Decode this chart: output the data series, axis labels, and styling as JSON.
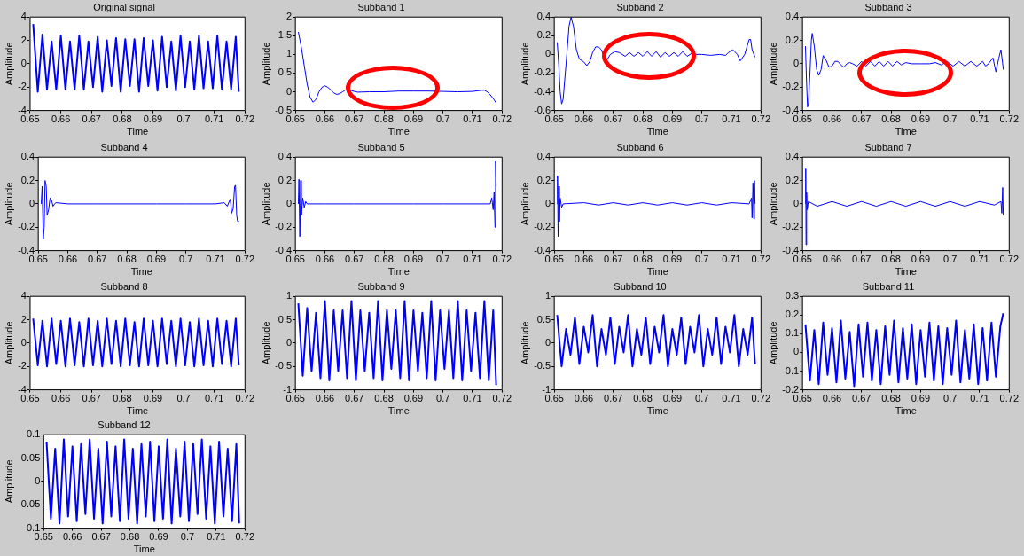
{
  "chart_data": [
    {
      "type": "line",
      "title": "Original signal",
      "xlabel": "Time",
      "ylabel": "Amplitude",
      "color": "#0000ff",
      "xlim": [
        0.65,
        0.72
      ],
      "xticks": [
        0.65,
        0.66,
        0.67,
        0.68,
        0.69,
        0.7,
        0.71,
        0.72
      ],
      "ylim": [
        -4,
        4
      ],
      "yticks": [
        -4,
        -2,
        0,
        2,
        4
      ],
      "x": [
        0.651,
        0.6525,
        0.654,
        0.6555,
        0.657,
        0.6585,
        0.66,
        0.6615,
        0.663,
        0.6645,
        0.666,
        0.6675,
        0.669,
        0.6705,
        0.672,
        0.6735,
        0.675,
        0.6765,
        0.678,
        0.6795,
        0.681,
        0.6825,
        0.684,
        0.6855,
        0.687,
        0.6885,
        0.69,
        0.6915,
        0.693,
        0.6945,
        0.696,
        0.6975,
        0.699,
        0.7005,
        0.702,
        0.7035,
        0.705,
        0.7065,
        0.708,
        0.7095,
        0.711,
        0.7125,
        0.714,
        0.7155,
        0.717,
        0.718
      ],
      "values": [
        3.4,
        -2.4,
        2.5,
        -2.2,
        1.9,
        -2.2,
        2.4,
        -2.2,
        1.9,
        -2.2,
        2.4,
        -2.2,
        1.9,
        -2.0,
        2.3,
        -2.4,
        2.0,
        -1.9,
        2.2,
        -2.4,
        2.1,
        -1.9,
        2.1,
        -2.4,
        2.2,
        -1.9,
        2.0,
        -2.3,
        2.3,
        -2.0,
        1.9,
        -2.3,
        2.4,
        -2.0,
        1.9,
        -2.2,
        2.4,
        -2.1,
        1.9,
        -2.1,
        2.4,
        -2.2,
        1.9,
        -2.2,
        2.3,
        -2.4
      ]
    },
    {
      "type": "line",
      "title": "Subband 1",
      "xlabel": "Time",
      "ylabel": "Amplitude",
      "color": "#0000ff",
      "xlim": [
        0.65,
        0.72
      ],
      "xticks": [
        0.65,
        0.66,
        0.67,
        0.68,
        0.69,
        0.7,
        0.71,
        0.72
      ],
      "ylim": [
        -0.5,
        2
      ],
      "yticks": [
        -0.5,
        0,
        0.5,
        1,
        1.5,
        2
      ],
      "x": [
        0.651,
        0.652,
        0.653,
        0.654,
        0.655,
        0.656,
        0.657,
        0.658,
        0.659,
        0.66,
        0.661,
        0.662,
        0.663,
        0.664,
        0.665,
        0.666,
        0.667,
        0.668,
        0.669,
        0.671,
        0.675,
        0.68,
        0.685,
        0.69,
        0.695,
        0.7,
        0.705,
        0.71,
        0.713,
        0.714,
        0.715,
        0.716,
        0.717,
        0.718
      ],
      "values": [
        1.6,
        1.2,
        0.7,
        0.2,
        -0.15,
        -0.28,
        -0.2,
        0,
        0.12,
        0.16,
        0.12,
        0.05,
        -0.03,
        -0.07,
        -0.05,
        0,
        0.05,
        0.06,
        0.03,
        -0.01,
        0,
        0,
        0.02,
        0.02,
        0.02,
        0.01,
        0,
        0.01,
        0.04,
        0.04,
        0,
        -0.08,
        -0.18,
        -0.3
      ]
    },
    {
      "type": "line",
      "title": "Subband 2",
      "xlabel": "Time",
      "ylabel": "Amplitude",
      "color": "#0000ff",
      "xlim": [
        0.65,
        0.72
      ],
      "xticks": [
        0.65,
        0.66,
        0.67,
        0.68,
        0.69,
        0.7,
        0.71,
        0.72
      ],
      "ylim": [
        -0.6,
        0.4
      ],
      "yticks": [
        -0.6,
        -0.4,
        -0.2,
        0,
        0.2,
        0.4
      ],
      "x": [
        0.651,
        0.6515,
        0.652,
        0.6525,
        0.653,
        0.654,
        0.655,
        0.6557,
        0.6565,
        0.6575,
        0.6585,
        0.66,
        0.661,
        0.662,
        0.663,
        0.664,
        0.665,
        0.666,
        0.667,
        0.668,
        0.669,
        0.6705,
        0.672,
        0.674,
        0.6755,
        0.677,
        0.6785,
        0.68,
        0.6815,
        0.683,
        0.6845,
        0.686,
        0.6875,
        0.689,
        0.6905,
        0.692,
        0.6935,
        0.695,
        0.6965,
        0.698,
        0.7,
        0.703,
        0.706,
        0.708,
        0.709,
        0.7105,
        0.712,
        0.713,
        0.7145,
        0.716,
        0.7165,
        0.717,
        0.718
      ],
      "values": [
        0.13,
        -0.1,
        -0.4,
        -0.53,
        -0.48,
        -0.1,
        0.3,
        0.4,
        0.3,
        0.05,
        -0.05,
        -0.08,
        -0.12,
        -0.08,
        0.02,
        0.08,
        0.08,
        0.05,
        -0.04,
        -0.05,
        0,
        0.03,
        0.02,
        -0.02,
        0.02,
        -0.02,
        0.02,
        -0.02,
        0.03,
        -0.02,
        0.03,
        -0.03,
        0.02,
        -0.02,
        0.02,
        -0.02,
        0.03,
        -0.02,
        0.01,
        0,
        0,
        -0.01,
        0,
        -0.01,
        0.02,
        0.05,
        0,
        -0.07,
        0,
        0.16,
        0.16,
        0.05,
        -0.03
      ]
    },
    {
      "type": "line",
      "title": "Subband 3",
      "xlabel": "Time",
      "ylabel": "Amplitude",
      "color": "#0000ff",
      "xlim": [
        0.65,
        0.72
      ],
      "xticks": [
        0.65,
        0.66,
        0.67,
        0.68,
        0.69,
        0.7,
        0.71,
        0.72
      ],
      "ylim": [
        -0.4,
        0.4
      ],
      "yticks": [
        -0.4,
        -0.2,
        0,
        0.2,
        0.4
      ],
      "x": [
        0.651,
        0.6513,
        0.6517,
        0.652,
        0.6525,
        0.653,
        0.6533,
        0.654,
        0.6548,
        0.6555,
        0.6563,
        0.657,
        0.658,
        0.659,
        0.66,
        0.661,
        0.662,
        0.663,
        0.664,
        0.665,
        0.666,
        0.667,
        0.6685,
        0.67,
        0.6715,
        0.673,
        0.6745,
        0.676,
        0.6775,
        0.679,
        0.6805,
        0.682,
        0.6835,
        0.685,
        0.687,
        0.69,
        0.693,
        0.695,
        0.697,
        0.699,
        0.701,
        0.703,
        0.705,
        0.707,
        0.709,
        0.711,
        0.712,
        0.713,
        0.7145,
        0.7155,
        0.7165,
        0.7172,
        0.7178,
        0.718
      ],
      "values": [
        0.15,
        -0.1,
        -0.37,
        -0.35,
        -0.1,
        0.2,
        0.26,
        0.15,
        -0.05,
        -0.1,
        -0.05,
        0.07,
        0.03,
        -0.03,
        -0.02,
        0.02,
        0.02,
        -0.01,
        -0.03,
        0,
        0.01,
        0,
        -0.02,
        0.02,
        -0.02,
        0.02,
        -0.02,
        0.02,
        -0.02,
        0.02,
        -0.02,
        0.02,
        -0.01,
        0.01,
        0,
        0,
        0,
        0.01,
        -0.01,
        0.02,
        -0.02,
        0.02,
        -0.02,
        0.02,
        -0.02,
        0.02,
        -0.02,
        0,
        0.05,
        -0.07,
        0.05,
        0.12,
        0,
        -0.05
      ]
    },
    {
      "type": "line",
      "title": "Subband 4",
      "xlabel": "Time",
      "ylabel": "Amplitude",
      "color": "#0000ff",
      "xlim": [
        0.65,
        0.72
      ],
      "xticks": [
        0.65,
        0.66,
        0.67,
        0.68,
        0.69,
        0.7,
        0.71,
        0.72
      ],
      "ylim": [
        -0.4,
        0.4
      ],
      "yticks": [
        -0.4,
        -0.2,
        0,
        0.2,
        0.4
      ],
      "x": [
        0.651,
        0.6513,
        0.6517,
        0.652,
        0.6523,
        0.6527,
        0.653,
        0.6535,
        0.654,
        0.6545,
        0.655,
        0.6555,
        0.656,
        0.66,
        0.67,
        0.68,
        0.69,
        0.7,
        0.71,
        0.713,
        0.714,
        0.715,
        0.7155,
        0.716,
        0.7165,
        0.7168,
        0.7172,
        0.7175,
        0.718
      ],
      "values": [
        0,
        0.15,
        -0.3,
        -0.2,
        0.2,
        0.15,
        -0.1,
        -0.05,
        0.05,
        0.03,
        -0.02,
        0,
        0.01,
        0,
        0,
        0,
        0,
        0,
        0,
        0.01,
        -0.02,
        0.04,
        -0.08,
        -0.04,
        0.15,
        0.16,
        -0.1,
        -0.15,
        -0.15
      ]
    },
    {
      "type": "line",
      "title": "Subband 5",
      "xlabel": "Time",
      "ylabel": "Amplitude",
      "color": "#0000ff",
      "xlim": [
        0.65,
        0.72
      ],
      "xticks": [
        0.65,
        0.66,
        0.67,
        0.68,
        0.69,
        0.7,
        0.71,
        0.72
      ],
      "ylim": [
        -0.4,
        0.4
      ],
      "yticks": [
        -0.4,
        -0.2,
        0,
        0.2,
        0.4
      ],
      "x": [
        0.651,
        0.6512,
        0.6515,
        0.6518,
        0.652,
        0.6525,
        0.653,
        0.6535,
        0.654,
        0.66,
        0.67,
        0.68,
        0.69,
        0.7,
        0.71,
        0.716,
        0.7165,
        0.717,
        0.7173,
        0.7176,
        0.7178,
        0.718
      ],
      "values": [
        0,
        0.21,
        -0.28,
        0.2,
        -0.1,
        0.05,
        -0.03,
        0.02,
        0,
        0,
        0,
        0,
        0,
        0,
        0,
        0,
        0.05,
        -0.05,
        0.1,
        -0.2,
        0.37,
        0.15
      ]
    },
    {
      "type": "line",
      "title": "Subband 6",
      "xlabel": "Time",
      "ylabel": "Amplitude",
      "color": "#0000ff",
      "xlim": [
        0.65,
        0.72
      ],
      "xticks": [
        0.65,
        0.66,
        0.67,
        0.68,
        0.69,
        0.7,
        0.71,
        0.72
      ],
      "ylim": [
        -0.4,
        0.4
      ],
      "yticks": [
        -0.4,
        -0.2,
        0,
        0.2,
        0.4
      ],
      "x": [
        0.651,
        0.6511,
        0.6513,
        0.6515,
        0.6517,
        0.652,
        0.6525,
        0.653,
        0.66,
        0.665,
        0.67,
        0.675,
        0.68,
        0.685,
        0.69,
        0.695,
        0.7,
        0.705,
        0.71,
        0.716,
        0.7168,
        0.717,
        0.7173,
        0.7176,
        0.7178,
        0.718
      ],
      "values": [
        0,
        0.24,
        -0.28,
        0.15,
        -0.15,
        0.05,
        -0.03,
        0,
        0.01,
        -0.01,
        0.01,
        -0.01,
        0.01,
        -0.01,
        0.01,
        -0.01,
        0.01,
        -0.01,
        0.01,
        0,
        0.05,
        -0.12,
        0.18,
        -0.13,
        0.2,
        0
      ]
    },
    {
      "type": "line",
      "title": "Subband 7",
      "xlabel": "Time",
      "ylabel": "Amplitude",
      "color": "#0000ff",
      "xlim": [
        0.65,
        0.72
      ],
      "xticks": [
        0.65,
        0.66,
        0.67,
        0.68,
        0.69,
        0.7,
        0.71,
        0.72
      ],
      "ylim": [
        -0.4,
        0.4
      ],
      "yticks": [
        -0.4,
        -0.2,
        0,
        0.2,
        0.4
      ],
      "x": [
        0.651,
        0.6511,
        0.6512,
        0.6514,
        0.6516,
        0.652,
        0.655,
        0.66,
        0.665,
        0.67,
        0.675,
        0.68,
        0.685,
        0.69,
        0.695,
        0.7,
        0.705,
        0.71,
        0.715,
        0.7172,
        0.7175,
        0.7178,
        0.718
      ],
      "values": [
        0,
        0.3,
        -0.35,
        0.1,
        -0.05,
        0.02,
        -0.02,
        0.02,
        -0.02,
        0.02,
        -0.02,
        0.02,
        -0.02,
        0.02,
        -0.02,
        0.02,
        -0.02,
        0.02,
        -0.01,
        0.02,
        -0.08,
        0.14,
        -0.1
      ]
    },
    {
      "type": "line",
      "title": "Subband 8",
      "xlabel": "Time",
      "ylabel": "Amplitude",
      "color": "#0000ff",
      "xlim": [
        0.65,
        0.72
      ],
      "xticks": [
        0.65,
        0.66,
        0.67,
        0.68,
        0.69,
        0.7,
        0.71,
        0.72
      ],
      "ylim": [
        -4,
        4
      ],
      "yticks": [
        -4,
        -2,
        0,
        2,
        4
      ],
      "x": [
        0.651,
        0.6525,
        0.654,
        0.6555,
        0.657,
        0.6585,
        0.66,
        0.6615,
        0.663,
        0.6645,
        0.666,
        0.6675,
        0.669,
        0.6705,
        0.672,
        0.6735,
        0.675,
        0.6765,
        0.678,
        0.6795,
        0.681,
        0.6825,
        0.684,
        0.6855,
        0.687,
        0.6885,
        0.69,
        0.6915,
        0.693,
        0.6945,
        0.696,
        0.6975,
        0.699,
        0.7005,
        0.702,
        0.7035,
        0.705,
        0.7065,
        0.708,
        0.7095,
        0.711,
        0.7125,
        0.714,
        0.7155,
        0.717,
        0.718
      ],
      "values": [
        2.1,
        -1.9,
        1.9,
        -2.0,
        2.1,
        -1.8,
        1.9,
        -2.0,
        2.1,
        -1.9,
        1.8,
        -2.0,
        2.1,
        -1.9,
        1.9,
        -2.0,
        2.1,
        -1.8,
        1.9,
        -2.0,
        2.1,
        -1.9,
        1.8,
        -2.0,
        2.1,
        -1.9,
        1.9,
        -2.0,
        2.1,
        -1.8,
        1.9,
        -2.0,
        2.1,
        -1.9,
        1.8,
        -2.0,
        2.1,
        -1.9,
        1.9,
        -2.0,
        2.1,
        -1.8,
        1.9,
        -2.0,
        2.1,
        -1.9
      ]
    },
    {
      "type": "line",
      "title": "Subband 9",
      "xlabel": "Time",
      "ylabel": "Amplitude",
      "color": "#0000ff",
      "xlim": [
        0.65,
        0.72
      ],
      "xticks": [
        0.65,
        0.66,
        0.67,
        0.68,
        0.69,
        0.7,
        0.71,
        0.72
      ],
      "ylim": [
        -1,
        1
      ],
      "yticks": [
        -1,
        -0.5,
        0,
        0.5,
        1
      ],
      "x": [
        0.651,
        0.6525,
        0.654,
        0.6555,
        0.657,
        0.6585,
        0.66,
        0.6615,
        0.663,
        0.6645,
        0.666,
        0.6675,
        0.669,
        0.6705,
        0.672,
        0.6735,
        0.675,
        0.6765,
        0.678,
        0.6795,
        0.681,
        0.6825,
        0.684,
        0.6855,
        0.687,
        0.6885,
        0.69,
        0.6915,
        0.693,
        0.6945,
        0.696,
        0.6975,
        0.699,
        0.7005,
        0.702,
        0.7035,
        0.705,
        0.7065,
        0.708,
        0.7095,
        0.711,
        0.7125,
        0.714,
        0.7155,
        0.717,
        0.718
      ],
      "values": [
        0.85,
        -0.7,
        0.75,
        -0.6,
        0.65,
        -0.75,
        0.9,
        -0.8,
        0.7,
        -0.6,
        0.7,
        -0.75,
        0.9,
        -0.8,
        0.7,
        -0.6,
        0.65,
        -0.75,
        0.9,
        -0.8,
        0.7,
        -0.55,
        0.7,
        -0.75,
        0.9,
        -0.8,
        0.7,
        -0.6,
        0.65,
        -0.75,
        0.9,
        -0.8,
        0.7,
        -0.55,
        0.7,
        -0.75,
        0.9,
        -0.8,
        0.7,
        -0.6,
        0.65,
        -0.75,
        0.9,
        -0.8,
        0.7,
        -0.9
      ]
    },
    {
      "type": "line",
      "title": "Subband 10",
      "xlabel": "Time",
      "ylabel": "Amplitude",
      "color": "#0000ff",
      "xlim": [
        0.65,
        0.72
      ],
      "xticks": [
        0.65,
        0.66,
        0.67,
        0.68,
        0.69,
        0.7,
        0.71,
        0.72
      ],
      "ylim": [
        -1,
        1
      ],
      "yticks": [
        -1,
        -0.5,
        0,
        0.5,
        1
      ],
      "x": [
        0.651,
        0.6525,
        0.654,
        0.6555,
        0.657,
        0.6585,
        0.66,
        0.6615,
        0.663,
        0.6645,
        0.666,
        0.6675,
        0.669,
        0.6705,
        0.672,
        0.6735,
        0.675,
        0.6765,
        0.678,
        0.6795,
        0.681,
        0.6825,
        0.684,
        0.6855,
        0.687,
        0.6885,
        0.69,
        0.6915,
        0.693,
        0.6945,
        0.696,
        0.6975,
        0.699,
        0.7005,
        0.702,
        0.7035,
        0.705,
        0.7065,
        0.708,
        0.7095,
        0.711,
        0.7125,
        0.714,
        0.7155,
        0.717,
        0.718
      ],
      "values": [
        0.6,
        -0.5,
        0.3,
        -0.25,
        0.55,
        -0.45,
        0.35,
        -0.2,
        0.6,
        -0.5,
        0.3,
        -0.25,
        0.55,
        -0.45,
        0.35,
        -0.2,
        0.6,
        -0.5,
        0.3,
        -0.25,
        0.55,
        -0.45,
        0.35,
        -0.2,
        0.6,
        -0.5,
        0.3,
        -0.25,
        0.55,
        -0.45,
        0.35,
        -0.2,
        0.6,
        -0.5,
        0.3,
        -0.25,
        0.55,
        -0.45,
        0.35,
        -0.2,
        0.6,
        -0.5,
        0.3,
        -0.25,
        0.55,
        -0.45
      ]
    },
    {
      "type": "line",
      "title": "Subband 11",
      "xlabel": "Time",
      "ylabel": "Amplitude",
      "color": "#0000ff",
      "xlim": [
        0.65,
        0.72
      ],
      "xticks": [
        0.65,
        0.66,
        0.67,
        0.68,
        0.69,
        0.7,
        0.71,
        0.72
      ],
      "ylim": [
        -0.2,
        0.3
      ],
      "yticks": [
        -0.2,
        -0.1,
        0,
        0.1,
        0.2,
        0.3
      ],
      "x": [
        0.651,
        0.6525,
        0.654,
        0.6555,
        0.657,
        0.6585,
        0.66,
        0.6615,
        0.663,
        0.6645,
        0.666,
        0.6675,
        0.669,
        0.6705,
        0.672,
        0.6735,
        0.675,
        0.6765,
        0.678,
        0.6795,
        0.681,
        0.6825,
        0.684,
        0.6855,
        0.687,
        0.6885,
        0.69,
        0.6915,
        0.693,
        0.6945,
        0.696,
        0.6975,
        0.699,
        0.7005,
        0.702,
        0.7035,
        0.705,
        0.7065,
        0.708,
        0.7095,
        0.711,
        0.7125,
        0.714,
        0.7155,
        0.717,
        0.718
      ],
      "values": [
        0.15,
        -0.15,
        0.12,
        -0.17,
        0.16,
        -0.12,
        0.13,
        -0.16,
        0.17,
        -0.14,
        0.11,
        -0.18,
        0.15,
        -0.13,
        0.16,
        -0.15,
        0.12,
        -0.17,
        0.14,
        -0.12,
        0.17,
        -0.16,
        0.13,
        -0.14,
        0.15,
        -0.17,
        0.12,
        -0.13,
        0.16,
        -0.15,
        0.14,
        -0.17,
        0.13,
        -0.12,
        0.17,
        -0.16,
        0.12,
        -0.14,
        0.15,
        -0.17,
        0.13,
        -0.15,
        0.16,
        -0.13,
        0.14,
        0.21
      ]
    },
    {
      "type": "line",
      "title": "Subband 12",
      "xlabel": "Time",
      "ylabel": "Amplitude",
      "color": "#0000ff",
      "xlim": [
        0.65,
        0.72
      ],
      "xticks": [
        0.65,
        0.66,
        0.67,
        0.68,
        0.69,
        0.7,
        0.71,
        0.72
      ],
      "ylim": [
        -0.1,
        0.1
      ],
      "yticks": [
        -0.1,
        -0.05,
        0,
        0.05,
        0.1
      ],
      "x": [
        0.651,
        0.6525,
        0.654,
        0.6555,
        0.657,
        0.6585,
        0.66,
        0.6615,
        0.663,
        0.6645,
        0.666,
        0.6675,
        0.669,
        0.6705,
        0.672,
        0.6735,
        0.675,
        0.6765,
        0.678,
        0.6795,
        0.681,
        0.6825,
        0.684,
        0.6855,
        0.687,
        0.6885,
        0.69,
        0.6915,
        0.693,
        0.6945,
        0.696,
        0.6975,
        0.699,
        0.7005,
        0.702,
        0.7035,
        0.705,
        0.7065,
        0.708,
        0.7095,
        0.711,
        0.7125,
        0.714,
        0.7155,
        0.717,
        0.718
      ],
      "values": [
        0.085,
        -0.08,
        0.07,
        -0.09,
        0.09,
        -0.075,
        0.075,
        -0.085,
        0.08,
        -0.07,
        0.09,
        -0.08,
        0.07,
        -0.09,
        0.085,
        -0.075,
        0.075,
        -0.085,
        0.09,
        -0.08,
        0.07,
        -0.09,
        0.08,
        -0.075,
        0.085,
        -0.085,
        0.075,
        -0.08,
        0.09,
        -0.09,
        0.07,
        -0.075,
        0.085,
        -0.085,
        0.08,
        -0.07,
        0.09,
        -0.08,
        0.075,
        -0.09,
        0.085,
        -0.075,
        0.07,
        -0.085,
        0.08,
        -0.09
      ]
    }
  ]
}
